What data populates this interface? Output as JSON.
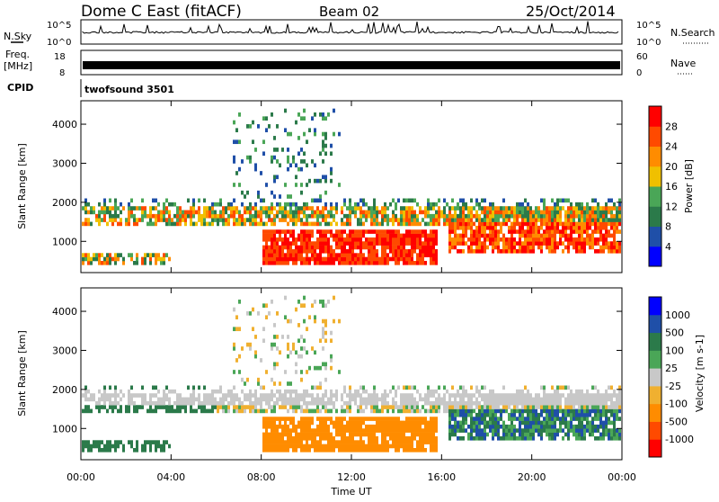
{
  "header": {
    "title": "Dome C East (fitACF)",
    "beam": "Beam 02",
    "date": "25/Oct/2014"
  },
  "noise_panel": {
    "left_label": "N.Sky",
    "right_label": "N.Search",
    "axis_top": "10^5",
    "axis_bottom": "10^0"
  },
  "freq_panel": {
    "left_label_line1": "Freq.",
    "left_label_line2": "[MHz]",
    "left_top": "18",
    "left_bottom": "8",
    "right_label": "Nave",
    "right_top": "60",
    "right_bottom": "0"
  },
  "cpid_panel": {
    "label": "CPID",
    "value": "twofsound 3501"
  },
  "colors": {
    "power_scale": [
      "#0000ff",
      "#1f4fa8",
      "#2b7a4a",
      "#4aa657",
      "#f0c000",
      "#ff8c00",
      "#ff4a00",
      "#ff0000"
    ],
    "velocity_scale": [
      "#ff0000",
      "#ff4a00",
      "#ff8c00",
      "#f0b030",
      "#c8c8c8",
      "#4aa657",
      "#2b7a4a",
      "#1f4fa8",
      "#0000ff"
    ]
  },
  "chart_data": [
    {
      "type": "heatmap",
      "title": "Power",
      "ylabel": "Slant Range [km]",
      "xlabel": "",
      "ylim": [
        200,
        4600
      ],
      "yticks": [
        1000,
        2000,
        3000,
        4000
      ],
      "xlim": [
        0,
        24
      ],
      "colorbar": {
        "label": "Power [dB]",
        "ticks": [
          "4",
          "8",
          "12",
          "16",
          "20",
          "24",
          "28"
        ]
      },
      "description_bands": [
        {
          "x": [
            0,
            16.2
          ],
          "y": [
            1400,
            1800
          ],
          "level": "green-orange"
        },
        {
          "x": [
            8.0,
            15.8
          ],
          "y": [
            300,
            1300
          ],
          "level": "red"
        },
        {
          "x": [
            16.2,
            24
          ],
          "y": [
            600,
            1900
          ],
          "level": "red-orange"
        }
      ]
    },
    {
      "type": "heatmap",
      "title": "Velocity",
      "ylabel": "Slant Range [km]",
      "xlabel": "Time UT",
      "ylim": [
        200,
        4600
      ],
      "yticks": [
        1000,
        2000,
        3000,
        4000
      ],
      "xlim": [
        0,
        24
      ],
      "xticks": [
        "00:00",
        "04:00",
        "08:00",
        "12:00",
        "16:00",
        "20:00",
        "00:00"
      ],
      "colorbar": {
        "label": "Velocity [m s-1]",
        "ticks": [
          "1000",
          "500",
          "100",
          "25",
          "-25",
          "-100",
          "-500",
          "-1000"
        ]
      }
    }
  ]
}
